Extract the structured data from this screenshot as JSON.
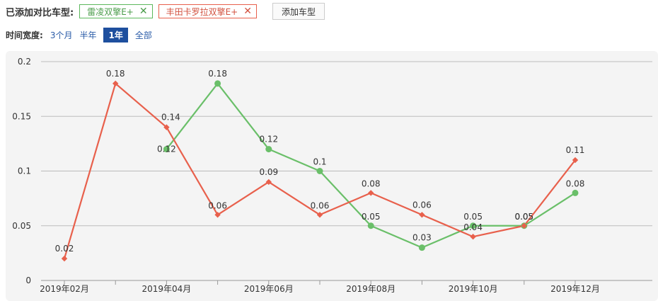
{
  "toolbar": {
    "added_label": "已添加对比车型:",
    "cars": [
      {
        "name": "雷凌双擎E+",
        "color": "#5cb85c"
      },
      {
        "name": "丰田卡罗拉双擎E+",
        "color": "#e8604c"
      }
    ],
    "add_button": "添加车型",
    "close_glyph": "✕"
  },
  "time_filter": {
    "label": "时间宽度:",
    "options": [
      "3个月",
      "半年",
      "1年",
      "全部"
    ],
    "selected": "1年"
  },
  "chart_data": {
    "type": "line",
    "x": [
      "2019-02",
      "2019-03",
      "2019-04",
      "2019-05",
      "2019-06",
      "2019-07",
      "2019-08",
      "2019-09",
      "2019-10",
      "2019-11",
      "2019-12"
    ],
    "xtick_labels": [
      "2019年02月",
      "2019年04月",
      "2019年06月",
      "2019年08月",
      "2019年10月",
      "2019年12月"
    ],
    "ylim": [
      0,
      0.2
    ],
    "yticks": [
      "0",
      "0.05",
      "0.1",
      "0.15",
      "0.2"
    ],
    "grid": true,
    "series": [
      {
        "name": "雷凌双擎E+",
        "color": "#6abf69",
        "marker": "circle",
        "values": [
          null,
          null,
          0.12,
          0.18,
          0.12,
          0.1,
          0.05,
          0.03,
          0.05,
          0.05,
          0.08
        ],
        "labels": [
          null,
          null,
          "0.12",
          "0.18",
          "0.12",
          "0.1",
          "0.05",
          "0.03",
          "0.05",
          "0.05",
          "0.08"
        ]
      },
      {
        "name": "丰田卡罗拉双擎E+",
        "color": "#e8604c",
        "marker": "diamond",
        "values": [
          0.02,
          0.18,
          0.14,
          0.06,
          0.09,
          0.06,
          0.08,
          0.06,
          0.04,
          0.05,
          0.11
        ],
        "labels": [
          "0.02",
          "0.18",
          "0.14",
          "0.06",
          "0.09",
          "0.06",
          "0.08",
          "0.06",
          "0.04",
          "0.05",
          "0.11"
        ]
      }
    ]
  }
}
